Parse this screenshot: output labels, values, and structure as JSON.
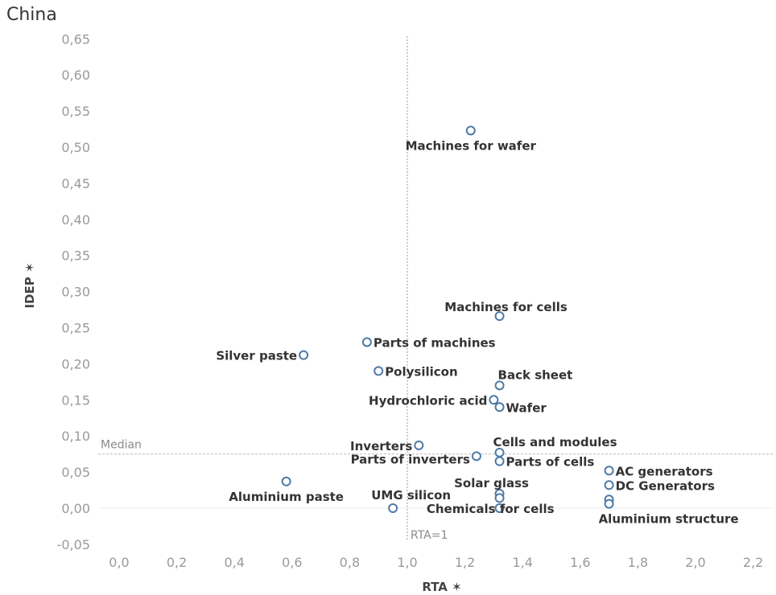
{
  "chart_data": {
    "type": "scatter",
    "title": "China",
    "xlabel": "RTA ✶",
    "ylabel": "IDEP ✶",
    "xlim": [
      -0.05,
      2.25
    ],
    "ylim": [
      -0.07,
      0.65
    ],
    "x_ticks": [
      "0,0",
      "0,2",
      "0,4",
      "0,6",
      "0,8",
      "1,0",
      "1,2",
      "1,4",
      "1,6",
      "1,8",
      "2,0",
      "2,2"
    ],
    "x_tick_values": [
      0,
      0.2,
      0.4,
      0.6,
      0.8,
      1.0,
      1.2,
      1.4,
      1.6,
      1.8,
      2.0,
      2.2
    ],
    "y_ticks": [
      "0,65",
      "0,60",
      "0,55",
      "0,50",
      "0,45",
      "0,40",
      "0,35",
      "0,30",
      "0,25",
      "0,20",
      "0,15",
      "0,10",
      "0,05",
      "0,00",
      "-0,05"
    ],
    "y_tick_values": [
      0.65,
      0.6,
      0.55,
      0.5,
      0.45,
      0.4,
      0.35,
      0.3,
      0.25,
      0.2,
      0.15,
      0.1,
      0.05,
      0.0,
      -0.05
    ],
    "reference_lines": {
      "vertical": {
        "x": 1.0,
        "label": "RTA=1"
      },
      "horizontal": {
        "y": 0.075,
        "label": "Median"
      }
    },
    "marker_color": "#4e79a7",
    "points": [
      {
        "label": "Machines for wafer",
        "x": 1.22,
        "y": 0.523,
        "label_pos": "below"
      },
      {
        "label": "Machines for cells",
        "x": 1.32,
        "y": 0.266,
        "label_pos": "above"
      },
      {
        "label": "Parts of machines",
        "x": 0.86,
        "y": 0.23,
        "label_pos": "right"
      },
      {
        "label": "Silver paste",
        "x": 0.64,
        "y": 0.212,
        "label_pos": "left"
      },
      {
        "label": "Polysilicon",
        "x": 0.9,
        "y": 0.19,
        "label_pos": "right"
      },
      {
        "label": "Back sheet",
        "x": 1.32,
        "y": 0.17,
        "label_pos": "above-right"
      },
      {
        "label": "Hydrochloric acid",
        "x": 1.3,
        "y": 0.15,
        "label_pos": "left"
      },
      {
        "label": "Wafer",
        "x": 1.32,
        "y": 0.14,
        "label_pos": "right"
      },
      {
        "label": "Inverters",
        "x": 1.04,
        "y": 0.087,
        "label_pos": "left"
      },
      {
        "label": "Cells and modules",
        "x": 1.32,
        "y": 0.077,
        "label_pos": "above-right"
      },
      {
        "label": "Parts of inverters",
        "x": 1.24,
        "y": 0.072,
        "label_pos": "below-left"
      },
      {
        "label": "Parts of cells",
        "x": 1.32,
        "y": 0.065,
        "label_pos": "right"
      },
      {
        "label": "AC generators",
        "x": 1.7,
        "y": 0.052,
        "label_pos": "right"
      },
      {
        "label": "Aluminium paste",
        "x": 0.58,
        "y": 0.037,
        "label_pos": "below"
      },
      {
        "label": "DC Generators",
        "x": 1.7,
        "y": 0.032,
        "label_pos": "right"
      },
      {
        "label": "Solar glass",
        "x": 1.32,
        "y": 0.02,
        "label_pos": "above"
      },
      {
        "label": "",
        "x": 1.32,
        "y": 0.014,
        "label_pos": "none"
      },
      {
        "label": "",
        "x": 1.7,
        "y": 0.012,
        "label_pos": "none"
      },
      {
        "label": "Aluminium structure",
        "x": 1.7,
        "y": 0.006,
        "label_pos": "below"
      },
      {
        "label": "UMG silicon",
        "x": 0.95,
        "y": 0.0,
        "label_pos": "above-left"
      },
      {
        "label": "Chemicals for cells",
        "x": 1.32,
        "y": 0.0,
        "label_pos": "below-left"
      }
    ]
  }
}
